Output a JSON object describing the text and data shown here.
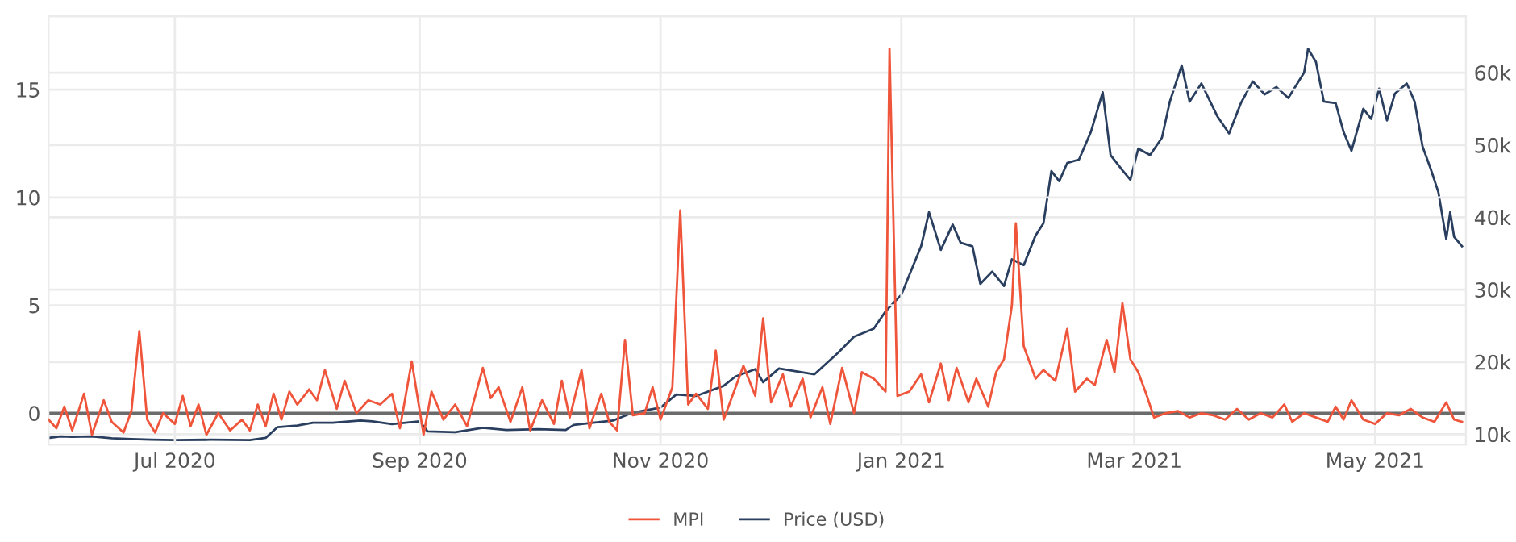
{
  "chart_data": {
    "type": "line",
    "xlim": [
      "2020-05-30",
      "2021-05-24"
    ],
    "xticks": [
      {
        "value": "2020-07-01",
        "label": "Jul 2020"
      },
      {
        "value": "2020-09-01",
        "label": "Sep 2020"
      },
      {
        "value": "2020-11-01",
        "label": "Nov 2020"
      },
      {
        "value": "2021-01-01",
        "label": "Jan 2021"
      },
      {
        "value": "2021-03-01",
        "label": "Mar 2021"
      },
      {
        "value": "2021-05-01",
        "label": "May 2021"
      }
    ],
    "ylim": [
      -1.45,
      18.4
    ],
    "yticks": [
      0,
      5,
      10,
      15
    ],
    "y2lim": [
      8600,
      67800
    ],
    "y2ticks": [
      {
        "value": 10000,
        "label": "10k"
      },
      {
        "value": 20000,
        "label": "20k"
      },
      {
        "value": 30000,
        "label": "30k"
      },
      {
        "value": 40000,
        "label": "40k"
      },
      {
        "value": 50000,
        "label": "50k"
      },
      {
        "value": 60000,
        "label": "60k"
      }
    ],
    "grid": true,
    "legend": "bottom",
    "line_style": "solid",
    "marker": "none",
    "ref_lines": [
      {
        "axis": "y",
        "value": 0,
        "color": "#6b6b6b"
      }
    ],
    "series": [
      {
        "name": "MPI",
        "color": "#ef553b",
        "x": [
          "2020-05-30",
          "2020-06-01",
          "2020-06-03",
          "2020-06-05",
          "2020-06-08",
          "2020-06-10",
          "2020-06-13",
          "2020-06-15",
          "2020-06-18",
          "2020-06-20",
          "2020-06-22",
          "2020-06-24",
          "2020-06-26",
          "2020-06-28",
          "2020-07-01",
          "2020-07-03",
          "2020-07-05",
          "2020-07-07",
          "2020-07-09",
          "2020-07-12",
          "2020-07-15",
          "2020-07-18",
          "2020-07-20",
          "2020-07-22",
          "2020-07-24",
          "2020-07-26",
          "2020-07-28",
          "2020-07-30",
          "2020-08-01",
          "2020-08-04",
          "2020-08-06",
          "2020-08-08",
          "2020-08-11",
          "2020-08-13",
          "2020-08-16",
          "2020-08-19",
          "2020-08-22",
          "2020-08-25",
          "2020-08-27",
          "2020-08-30",
          "2020-09-02",
          "2020-09-04",
          "2020-09-07",
          "2020-09-10",
          "2020-09-13",
          "2020-09-17",
          "2020-09-19",
          "2020-09-21",
          "2020-09-24",
          "2020-09-27",
          "2020-09-29",
          "2020-10-02",
          "2020-10-05",
          "2020-10-07",
          "2020-10-09",
          "2020-10-12",
          "2020-10-14",
          "2020-10-17",
          "2020-10-19",
          "2020-10-21",
          "2020-10-23",
          "2020-10-25",
          "2020-10-28",
          "2020-10-30",
          "2020-11-01",
          "2020-11-04",
          "2020-11-06",
          "2020-11-08",
          "2020-11-10",
          "2020-11-13",
          "2020-11-15",
          "2020-11-17",
          "2020-11-20",
          "2020-11-22",
          "2020-11-25",
          "2020-11-27",
          "2020-11-29",
          "2020-12-02",
          "2020-12-04",
          "2020-12-07",
          "2020-12-09",
          "2020-12-12",
          "2020-12-14",
          "2020-12-17",
          "2020-12-20",
          "2020-12-22",
          "2020-12-25",
          "2020-12-28",
          "2020-12-29",
          "2020-12-31",
          "2021-01-03",
          "2021-01-06",
          "2021-01-08",
          "2021-01-11",
          "2021-01-13",
          "2021-01-15",
          "2021-01-18",
          "2021-01-20",
          "2021-01-23",
          "2021-01-25",
          "2021-01-27",
          "2021-01-29",
          "2021-01-30",
          "2021-02-01",
          "2021-02-04",
          "2021-02-06",
          "2021-02-09",
          "2021-02-12",
          "2021-02-14",
          "2021-02-17",
          "2021-02-19",
          "2021-02-22",
          "2021-02-24",
          "2021-02-26",
          "2021-02-28",
          "2021-03-02",
          "2021-03-04",
          "2021-03-06",
          "2021-03-09",
          "2021-03-12",
          "2021-03-15",
          "2021-03-18",
          "2021-03-21",
          "2021-03-24",
          "2021-03-27",
          "2021-03-30",
          "2021-04-02",
          "2021-04-05",
          "2021-04-08",
          "2021-04-10",
          "2021-04-13",
          "2021-04-16",
          "2021-04-19",
          "2021-04-21",
          "2021-04-23",
          "2021-04-25",
          "2021-04-28",
          "2021-05-01",
          "2021-05-04",
          "2021-05-07",
          "2021-05-10",
          "2021-05-13",
          "2021-05-16",
          "2021-05-19",
          "2021-05-21",
          "2021-05-23"
        ],
        "values": [
          -0.3,
          -0.7,
          0.3,
          -0.8,
          0.9,
          -1.0,
          0.6,
          -0.4,
          -0.9,
          0.1,
          3.8,
          -0.3,
          -0.9,
          0.0,
          -0.5,
          0.8,
          -0.6,
          0.4,
          -1.0,
          0.0,
          -0.8,
          -0.3,
          -0.8,
          0.4,
          -0.6,
          0.9,
          -0.3,
          1.0,
          0.4,
          1.1,
          0.6,
          2.0,
          0.2,
          1.5,
          0.0,
          0.6,
          0.4,
          0.9,
          -0.7,
          2.4,
          -1.0,
          1.0,
          -0.3,
          0.4,
          -0.6,
          2.1,
          0.7,
          1.2,
          -0.4,
          1.2,
          -0.8,
          0.6,
          -0.5,
          1.5,
          -0.2,
          2.0,
          -0.7,
          0.9,
          -0.4,
          -0.8,
          3.4,
          -0.1,
          0.0,
          1.2,
          -0.3,
          1.2,
          9.4,
          0.4,
          0.9,
          0.2,
          2.9,
          -0.3,
          1.2,
          2.2,
          0.8,
          4.4,
          0.5,
          1.8,
          0.3,
          1.6,
          -0.2,
          1.2,
          -0.5,
          2.1,
          0.0,
          1.9,
          1.6,
          1.0,
          16.9,
          0.8,
          1.0,
          1.8,
          0.5,
          2.3,
          0.6,
          2.1,
          0.5,
          1.6,
          0.3,
          1.9,
          2.5,
          5.0,
          8.8,
          3.1,
          1.6,
          2.0,
          1.5,
          3.9,
          1.0,
          1.6,
          1.3,
          3.4,
          1.9,
          5.1,
          2.5,
          1.9,
          0.9,
          -0.2,
          0.0,
          0.1,
          -0.2,
          0.0,
          -0.1,
          -0.3,
          0.2,
          -0.3,
          0.0,
          -0.2,
          0.4,
          -0.4,
          0.0,
          -0.2,
          -0.4,
          0.3,
          -0.3,
          0.6,
          -0.3,
          -0.5,
          0.0,
          -0.1,
          0.2,
          -0.2,
          -0.4,
          0.5,
          -0.3,
          -0.4
        ]
      },
      {
        "name": "Price (USD)",
        "color": "#2a3f5f",
        "axis": "y2",
        "x": [
          "2020-05-30",
          "2020-06-02",
          "2020-06-05",
          "2020-06-10",
          "2020-06-15",
          "2020-06-20",
          "2020-06-25",
          "2020-07-01",
          "2020-07-10",
          "2020-07-20",
          "2020-07-24",
          "2020-07-27",
          "2020-08-01",
          "2020-08-05",
          "2020-08-10",
          "2020-08-17",
          "2020-08-20",
          "2020-08-25",
          "2020-09-01",
          "2020-09-03",
          "2020-09-10",
          "2020-09-17",
          "2020-09-23",
          "2020-10-01",
          "2020-10-08",
          "2020-10-10",
          "2020-10-20",
          "2020-10-25",
          "2020-11-01",
          "2020-11-05",
          "2020-11-10",
          "2020-11-17",
          "2020-11-20",
          "2020-11-25",
          "2020-11-27",
          "2020-12-01",
          "2020-12-10",
          "2020-12-16",
          "2020-12-20",
          "2020-12-25",
          "2020-12-28",
          "2021-01-01",
          "2021-01-03",
          "2021-01-06",
          "2021-01-08",
          "2021-01-11",
          "2021-01-14",
          "2021-01-16",
          "2021-01-19",
          "2021-01-21",
          "2021-01-24",
          "2021-01-27",
          "2021-01-29",
          "2021-02-01",
          "2021-02-04",
          "2021-02-06",
          "2021-02-08",
          "2021-02-10",
          "2021-02-12",
          "2021-02-15",
          "2021-02-18",
          "2021-02-21",
          "2021-02-23",
          "2021-02-26",
          "2021-02-28",
          "2021-03-02",
          "2021-03-05",
          "2021-03-08",
          "2021-03-10",
          "2021-03-13",
          "2021-03-15",
          "2021-03-18",
          "2021-03-22",
          "2021-03-25",
          "2021-03-28",
          "2021-03-31",
          "2021-04-03",
          "2021-04-06",
          "2021-04-09",
          "2021-04-13",
          "2021-04-14",
          "2021-04-16",
          "2021-04-18",
          "2021-04-21",
          "2021-04-23",
          "2021-04-25",
          "2021-04-28",
          "2021-04-30",
          "2021-05-02",
          "2021-05-04",
          "2021-05-06",
          "2021-05-09",
          "2021-05-11",
          "2021-05-13",
          "2021-05-15",
          "2021-05-17",
          "2021-05-19",
          "2021-05-20",
          "2021-05-21",
          "2021-05-23"
        ],
        "values": [
          9500,
          9700,
          9650,
          9700,
          9450,
          9350,
          9250,
          9200,
          9250,
          9200,
          9500,
          11000,
          11200,
          11600,
          11600,
          11900,
          11800,
          11400,
          11800,
          10400,
          10300,
          10900,
          10600,
          10700,
          10600,
          11300,
          11900,
          13000,
          13700,
          15500,
          15300,
          16700,
          18000,
          19000,
          17200,
          19100,
          18300,
          21300,
          23500,
          24600,
          27000,
          29300,
          32000,
          36000,
          40700,
          35500,
          39000,
          36500,
          36000,
          30800,
          32500,
          30500,
          34200,
          33400,
          37500,
          39200,
          46400,
          45000,
          47500,
          48000,
          51800,
          57300,
          48600,
          46500,
          45200,
          49500,
          48600,
          51000,
          56000,
          61000,
          56000,
          58500,
          54000,
          51600,
          55800,
          58800,
          57000,
          58000,
          56500,
          60000,
          63300,
          61500,
          56000,
          55800,
          51800,
          49200,
          55000,
          53600,
          57800,
          53400,
          57100,
          58500,
          56000,
          49800,
          46800,
          43500,
          37000,
          40700,
          37300,
          36000
        ]
      }
    ]
  }
}
